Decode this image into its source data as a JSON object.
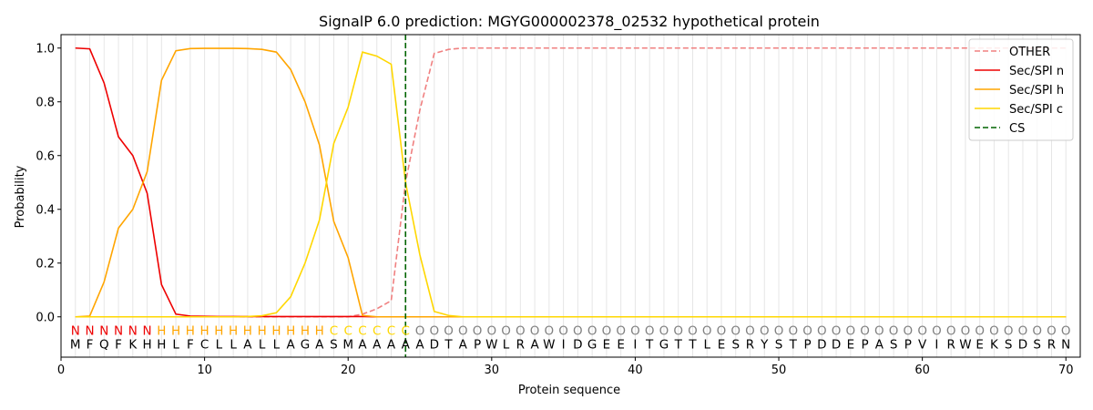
{
  "chart_data": {
    "type": "line",
    "title": "SignalP 6.0 prediction: MGYG000002378_02532 hypothetical protein",
    "xlabel": "Protein sequence",
    "ylabel": "Probability",
    "xlim": [
      0,
      71
    ],
    "ylim": [
      -0.15,
      1.05
    ],
    "xticks": [
      0,
      10,
      20,
      30,
      40,
      50,
      60,
      70
    ],
    "yticks": [
      "0.0",
      "0.2",
      "0.4",
      "0.6",
      "0.8",
      "1.0"
    ],
    "ytick_values": [
      0.0,
      0.2,
      0.4,
      0.6,
      0.8,
      1.0
    ],
    "grid": "vertical lines at each residue",
    "legend_position": "top-right",
    "sequence": "MFQFKHHLFCLLALLAGASMAAAAADTAPWLRAWIDGEEITGTTLESRYSTPDDEPASPVIRWEKSDSRN",
    "labels": "NNNNNNHHHHHHHHHHHHCCCCCCOOOOOOOOOOOOOOOOOOOOOOOOOOOOOOOOOOOOOOOOOOOOOO",
    "label_colors": {
      "N": "#ee0000",
      "H": "#ffa500",
      "C": "#ffd700",
      "O": "#808080"
    },
    "cleavage_site": 24,
    "series": [
      {
        "name": "OTHER",
        "color": "#f08080",
        "style": "dashed",
        "values": [
          0,
          0,
          0,
          0,
          0,
          0,
          0,
          0,
          0,
          0,
          0,
          0,
          0,
          0,
          0,
          0,
          0,
          0,
          0,
          0,
          0.01,
          0.03,
          0.06,
          0.5,
          0.77,
          0.98,
          0.995,
          1,
          1,
          1,
          1,
          1,
          1,
          1,
          1,
          1,
          1,
          1,
          1,
          1,
          1,
          1,
          1,
          1,
          1,
          1,
          1,
          1,
          1,
          1,
          1,
          1,
          1,
          1,
          1,
          1,
          1,
          1,
          1,
          1,
          1,
          1,
          1,
          1,
          1,
          1,
          1,
          1,
          1,
          1
        ]
      },
      {
        "name": "Sec/SPI n",
        "color": "#ee0000",
        "style": "solid",
        "values": [
          1,
          0.997,
          0.87,
          0.67,
          0.6,
          0.46,
          0.12,
          0.01,
          0.003,
          0.002,
          0.001,
          0.001,
          0.001,
          0.001,
          0.001,
          0.001,
          0.001,
          0.001,
          0.001,
          0.001,
          0.001,
          0,
          0,
          0,
          0,
          0,
          0,
          0,
          0,
          0,
          0,
          0,
          0,
          0,
          0,
          0,
          0,
          0,
          0,
          0,
          0,
          0,
          0,
          0,
          0,
          0,
          0,
          0,
          0,
          0,
          0,
          0,
          0,
          0,
          0,
          0,
          0,
          0,
          0,
          0,
          0,
          0,
          0,
          0,
          0,
          0,
          0,
          0,
          0,
          0
        ]
      },
      {
        "name": "Sec/SPI h",
        "color": "#ffa500",
        "style": "solid",
        "values": [
          0,
          0.003,
          0.13,
          0.33,
          0.4,
          0.54,
          0.88,
          0.99,
          0.998,
          0.999,
          0.999,
          0.999,
          0.998,
          0.995,
          0.985,
          0.92,
          0.8,
          0.64,
          0.355,
          0.22,
          0.005,
          0,
          0,
          0,
          0,
          0,
          0,
          0,
          0,
          0,
          0,
          0,
          0,
          0,
          0,
          0,
          0,
          0,
          0,
          0,
          0,
          0,
          0,
          0,
          0,
          0,
          0,
          0,
          0,
          0,
          0,
          0,
          0,
          0,
          0,
          0,
          0,
          0,
          0,
          0,
          0,
          0,
          0,
          0,
          0,
          0,
          0,
          0,
          0,
          0
        ]
      },
      {
        "name": "Sec/SPI c",
        "color": "#ffd700",
        "style": "solid",
        "values": [
          0,
          0,
          0,
          0,
          0,
          0,
          0,
          0,
          0,
          0,
          0,
          0,
          0.001,
          0.004,
          0.015,
          0.075,
          0.2,
          0.36,
          0.645,
          0.78,
          0.985,
          0.97,
          0.94,
          0.5,
          0.23,
          0.02,
          0.005,
          0,
          0,
          0,
          0,
          0,
          0,
          0,
          0,
          0,
          0,
          0,
          0,
          0,
          0,
          0,
          0,
          0,
          0,
          0,
          0,
          0,
          0,
          0,
          0,
          0,
          0,
          0,
          0,
          0,
          0,
          0,
          0,
          0,
          0,
          0,
          0,
          0,
          0,
          0,
          0,
          0,
          0,
          0
        ]
      }
    ],
    "legend": [
      {
        "name": "OTHER",
        "color": "#f08080",
        "style": "dashed"
      },
      {
        "name": "Sec/SPI n",
        "color": "#ee0000",
        "style": "solid"
      },
      {
        "name": "Sec/SPI h",
        "color": "#ffa500",
        "style": "solid"
      },
      {
        "name": "Sec/SPI c",
        "color": "#ffd700",
        "style": "solid"
      },
      {
        "name": "CS",
        "color": "#006400",
        "style": "dashed"
      }
    ]
  }
}
